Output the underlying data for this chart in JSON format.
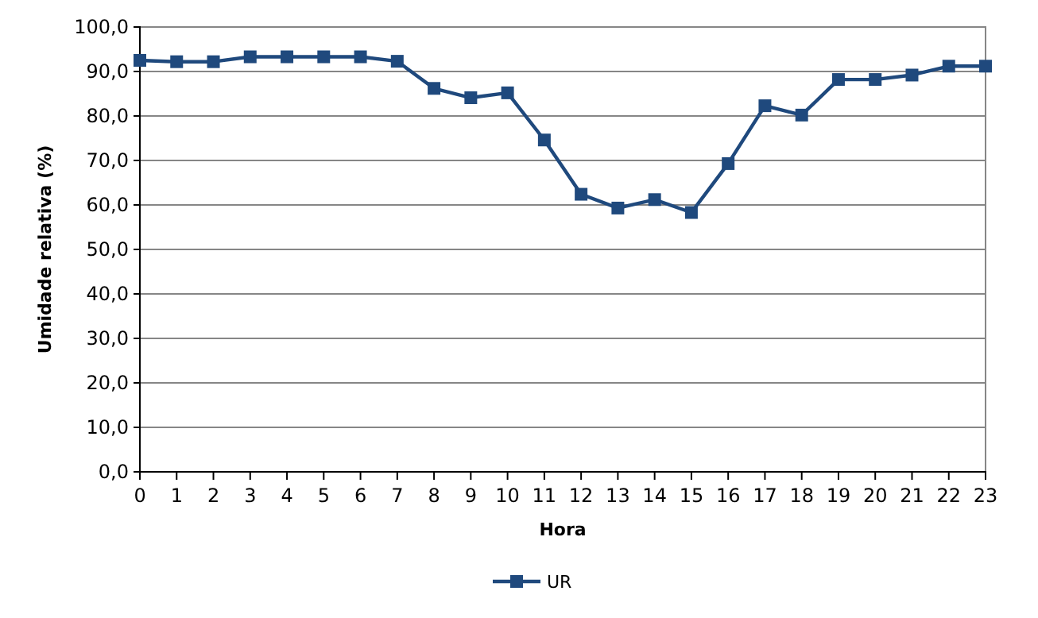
{
  "chart_data": {
    "type": "line",
    "xlabel": "Hora",
    "ylabel": "Umidade relativa (%)",
    "x": [
      0,
      1,
      2,
      3,
      4,
      5,
      6,
      7,
      8,
      9,
      10,
      11,
      12,
      13,
      14,
      15,
      16,
      17,
      18,
      19,
      20,
      21,
      22,
      23
    ],
    "series": [
      {
        "name": "UR",
        "color": "#1f497d",
        "values": [
          92.5,
          92.2,
          92.2,
          93.3,
          93.3,
          93.3,
          93.3,
          92.3,
          86.2,
          84.1,
          85.2,
          74.6,
          62.4,
          59.3,
          61.2,
          58.3,
          69.3,
          82.3,
          80.2,
          88.2,
          88.2,
          89.2,
          91.2,
          91.2
        ]
      }
    ],
    "xlim": [
      0,
      23
    ],
    "xticks": [
      0,
      1,
      2,
      3,
      4,
      5,
      6,
      7,
      8,
      9,
      10,
      11,
      12,
      13,
      14,
      15,
      16,
      17,
      18,
      19,
      20,
      21,
      22,
      23
    ],
    "ylim": [
      0,
      100
    ],
    "yticks": [
      {
        "value": 0,
        "label": "0,0"
      },
      {
        "value": 10,
        "label": "10,0"
      },
      {
        "value": 20,
        "label": "20,0"
      },
      {
        "value": 30,
        "label": "30,0"
      },
      {
        "value": 40,
        "label": "40,0"
      },
      {
        "value": 50,
        "label": "50,0"
      },
      {
        "value": 60,
        "label": "60,0"
      },
      {
        "value": 70,
        "label": "70,0"
      },
      {
        "value": 80,
        "label": "80,0"
      },
      {
        "value": 90,
        "label": "90,0"
      },
      {
        "value": 100,
        "label": "100,0"
      }
    ],
    "grid": "y",
    "legend": "bottom",
    "marker": "square",
    "line_style": "solid"
  }
}
